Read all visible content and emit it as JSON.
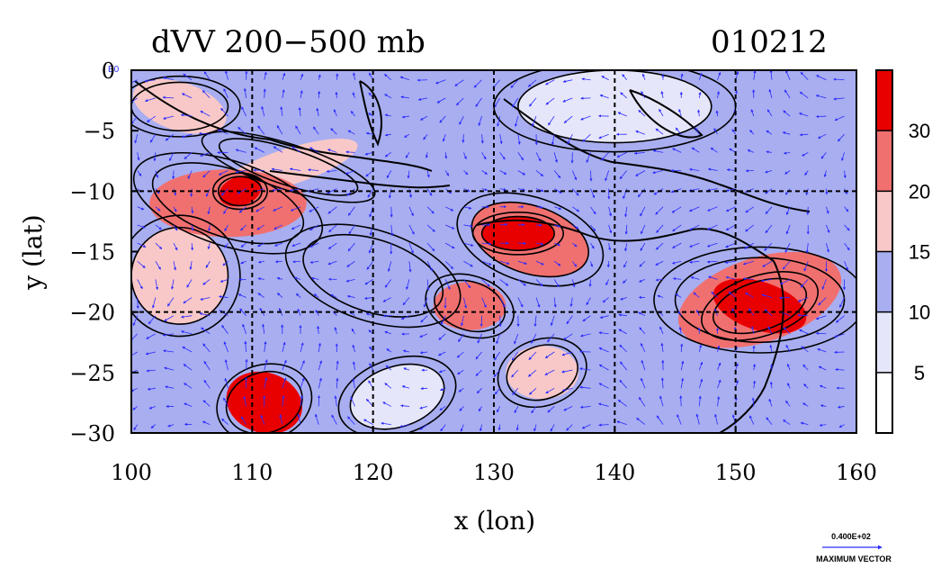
{
  "title": {
    "left": "dVV 200−500 mb",
    "right": "010212"
  },
  "axes": {
    "xlabel": "x (lon)",
    "ylabel": "y (lat)",
    "x_ticks": [
      "100",
      "110",
      "120",
      "130",
      "140",
      "150",
      "160"
    ],
    "y_ticks": [
      "0",
      "−5",
      "−10",
      "−15",
      "−20",
      "−25",
      "−30"
    ],
    "x_range": [
      100,
      160
    ],
    "y_range": [
      -30,
      0
    ],
    "grid_lon": [
      110,
      120,
      130,
      140,
      150
    ],
    "grid_lat": [
      -10,
      -20
    ]
  },
  "colorbar": {
    "levels": [
      "5",
      "10",
      "15",
      "20",
      "30"
    ],
    "colors": [
      "#ffffff",
      "#e6e6fa",
      "#a8aef0",
      "#f8c8c8",
      "#f07070",
      "#e80000"
    ]
  },
  "vector_key": {
    "value": "0.400E+02",
    "label": "MAXIMUM VECTOR"
  },
  "corner_label": "E0",
  "fields": {
    "blobs": [
      {
        "lon": 111,
        "lat": -27.5,
        "r_lon": 3.2,
        "r_lat": 2.5,
        "level": 5
      },
      {
        "lon": 109,
        "lat": -10,
        "r_lon": 1.8,
        "r_lat": 1.2,
        "level": 5
      },
      {
        "lon": 108,
        "lat": -11,
        "r_lon": 6.5,
        "r_lat": 2.8,
        "level": 4
      },
      {
        "lon": 104,
        "lat": -17,
        "r_lon": 4,
        "r_lat": 4,
        "level": 3
      },
      {
        "lon": 132,
        "lat": -13.5,
        "r_lon": 3,
        "r_lat": 1.4,
        "level": 5
      },
      {
        "lon": 133,
        "lat": -14,
        "r_lon": 5,
        "r_lat": 2.8,
        "level": 4
      },
      {
        "lon": 152,
        "lat": -19.5,
        "r_lon": 4,
        "r_lat": 2,
        "level": 5
      },
      {
        "lon": 152,
        "lat": -19,
        "r_lon": 7,
        "r_lat": 3.5,
        "level": 4
      },
      {
        "lon": 128,
        "lat": -19.5,
        "r_lon": 3,
        "r_lat": 2,
        "level": 4
      },
      {
        "lon": 134,
        "lat": -25,
        "r_lon": 3,
        "r_lat": 2.2,
        "level": 3
      },
      {
        "lon": 104,
        "lat": -3,
        "r_lon": 4,
        "r_lat": 2,
        "level": 3
      },
      {
        "lon": 113,
        "lat": -8,
        "r_lon": 6,
        "r_lat": 1.5,
        "level": 3
      },
      {
        "lon": 122,
        "lat": -27,
        "r_lon": 4,
        "r_lat": 2.5,
        "level": 1
      },
      {
        "lon": 140,
        "lat": -3,
        "r_lon": 8,
        "r_lat": 3,
        "level": 1
      },
      {
        "lon": 120,
        "lat": -17,
        "r_lon": 6,
        "r_lat": 3,
        "level": 2
      }
    ]
  }
}
